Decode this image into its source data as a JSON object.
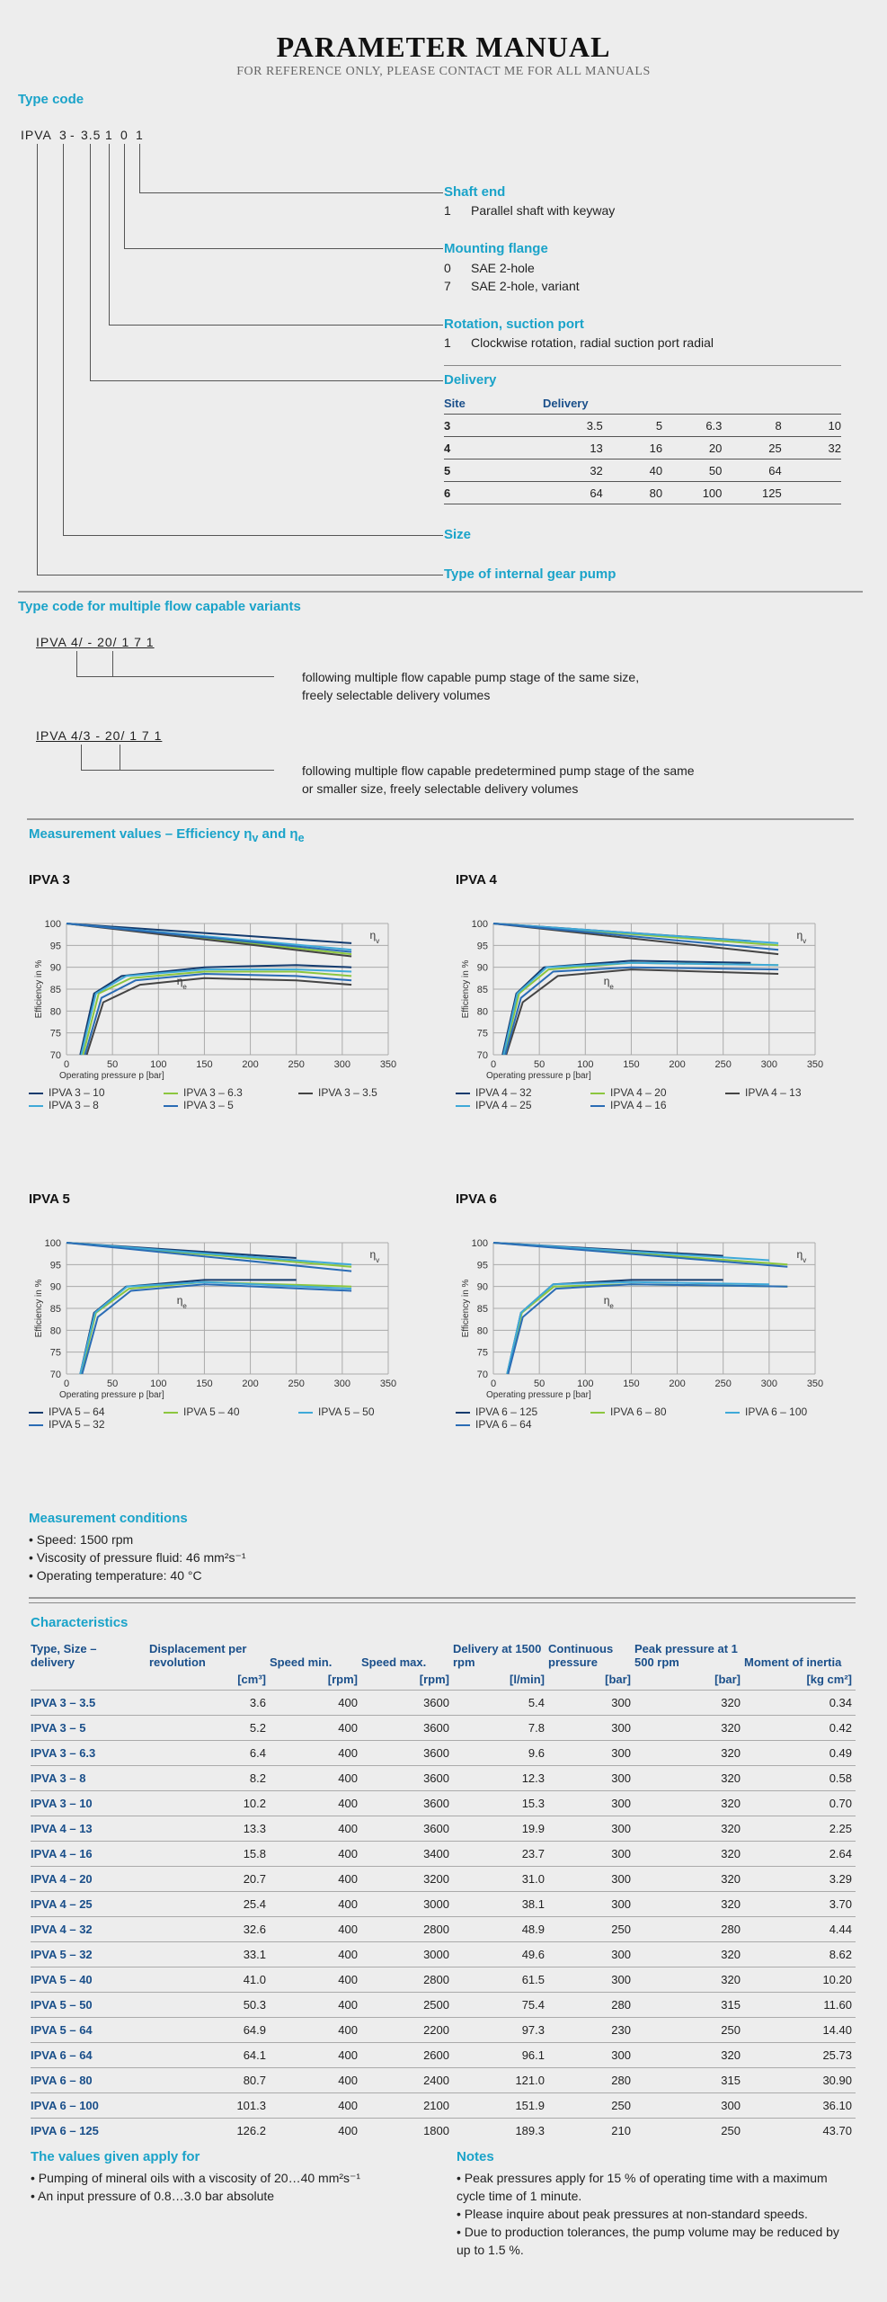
{
  "header": {
    "title": "PARAMETER MANUAL",
    "subtitle": "FOR REFERENCE ONLY, PLEASE CONTACT ME FOR ALL MANUALS"
  },
  "type_code": {
    "heading": "Type code",
    "code": [
      "IPVA",
      "3",
      "-",
      "3.5",
      "1",
      "0",
      "1"
    ],
    "shaft_end": {
      "title": "Shaft end",
      "items": [
        [
          "1",
          "Parallel shaft with keyway"
        ]
      ]
    },
    "mounting_flange": {
      "title": "Mounting flange",
      "items": [
        [
          "0",
          "SAE 2-hole"
        ],
        [
          "7",
          "SAE 2-hole, variant"
        ]
      ]
    },
    "rotation": {
      "title": "Rotation, suction port",
      "items": [
        [
          "1",
          "Clockwise rotation, radial suction port radial"
        ]
      ]
    },
    "delivery": {
      "title": "Delivery",
      "col_site": "Site",
      "col_delivery": "Delivery",
      "rows": [
        [
          "3",
          "3.5",
          "5",
          "6.3",
          "8",
          "10"
        ],
        [
          "4",
          "13",
          "16",
          "20",
          "25",
          "32"
        ],
        [
          "5",
          "32",
          "40",
          "50",
          "64",
          ""
        ],
        [
          "6",
          "64",
          "80",
          "100",
          "125",
          ""
        ]
      ]
    },
    "size": "Size",
    "type_pump": "Type of internal gear pump"
  },
  "multi": {
    "heading": "Type code for multiple flow capable variants",
    "code1": "IPVA 4/ - 20/ 1 7 1",
    "desc1a": "following multiple flow capable pump stage of the same size,",
    "desc1b": "freely selectable delivery volumes",
    "code2": "IPVA 4/3 - 20/ 1 7 1",
    "desc2a": "following multiple flow capable predetermined pump stage of the same",
    "desc2b": "or smaller size, freely selectable delivery volumes"
  },
  "measure": {
    "heading": "Measurement values – Efficiency η",
    "sub_v": "v",
    "and": " and η",
    "sub_e": "e"
  },
  "colors": {
    "c1": "#143b6e",
    "c2": "#3fa9d8",
    "c3": "#8cc63f",
    "c4": "#444444",
    "c5": "#2a6cb5",
    "accent": "#1aa3c9"
  },
  "chart_data": [
    {
      "type": "line",
      "title": "IPVA 3",
      "xlabel": "Operating pressure p [bar]",
      "ylabel": "Efficiency in %",
      "xlim": [
        0,
        350
      ],
      "ylim": [
        70,
        100
      ],
      "xticks": [
        "0",
        "50",
        "100",
        "150",
        "200",
        "250",
        "300",
        "350"
      ],
      "yticks": [
        "70",
        "75",
        "80",
        "85",
        "90",
        "95",
        "100"
      ],
      "label_v": "η",
      "label_e": "η",
      "series": [
        {
          "name": "IPVA 3 – 10",
          "color": "#143b6e",
          "eta_v": [
            [
              0,
              100
            ],
            [
              310,
              95.5
            ]
          ],
          "eta_e": [
            [
              15,
              70
            ],
            [
              30,
              84
            ],
            [
              60,
              88
            ],
            [
              150,
              90
            ],
            [
              250,
              90.5
            ],
            [
              310,
              90
            ]
          ]
        },
        {
          "name": "IPVA 3 – 6.3",
          "color": "#8cc63f",
          "eta_v": [
            [
              0,
              100
            ],
            [
              310,
              93
            ]
          ],
          "eta_e": [
            [
              18,
              70
            ],
            [
              35,
              84
            ],
            [
              70,
              87.5
            ],
            [
              150,
              89
            ],
            [
              250,
              89
            ],
            [
              310,
              88
            ]
          ]
        },
        {
          "name": "IPVA 3 – 3.5",
          "color": "#444444",
          "eta_v": [
            [
              0,
              100
            ],
            [
              310,
              92.5
            ]
          ],
          "eta_e": [
            [
              22,
              70
            ],
            [
              40,
              82
            ],
            [
              80,
              86
            ],
            [
              150,
              87.5
            ],
            [
              250,
              87
            ],
            [
              310,
              86
            ]
          ]
        },
        {
          "name": "IPVA 3 – 8",
          "color": "#3fa9d8",
          "eta_v": [
            [
              0,
              100
            ],
            [
              310,
              94
            ]
          ],
          "eta_e": [
            [
              16,
              70
            ],
            [
              32,
              84
            ],
            [
              65,
              88
            ],
            [
              150,
              89.5
            ],
            [
              250,
              89.5
            ],
            [
              310,
              89
            ]
          ]
        },
        {
          "name": "IPVA 3 – 5",
          "color": "#2a6cb5",
          "eta_v": [
            [
              0,
              100
            ],
            [
              310,
              93.5
            ]
          ],
          "eta_e": [
            [
              20,
              70
            ],
            [
              38,
              83
            ],
            [
              75,
              87
            ],
            [
              150,
              88.5
            ],
            [
              250,
              88
            ],
            [
              310,
              87
            ]
          ]
        }
      ]
    },
    {
      "type": "line",
      "title": "IPVA 4",
      "xlabel": "Operating pressure p [bar]",
      "ylabel": "Efficiency in %",
      "xlim": [
        0,
        350
      ],
      "ylim": [
        70,
        100
      ],
      "xticks": [
        "0",
        "50",
        "100",
        "150",
        "200",
        "250",
        "300",
        "350"
      ],
      "yticks": [
        "70",
        "75",
        "80",
        "85",
        "90",
        "95",
        "100"
      ],
      "label_v": "η",
      "label_e": "η",
      "series": [
        {
          "name": "IPVA 4 – 32",
          "color": "#143b6e",
          "eta_v": [
            [
              0,
              100
            ],
            [
              280,
              96
            ]
          ],
          "eta_e": [
            [
              10,
              70
            ],
            [
              25,
              84
            ],
            [
              55,
              90
            ],
            [
              150,
              91.5
            ],
            [
              280,
              91
            ]
          ]
        },
        {
          "name": "IPVA 4 – 20",
          "color": "#8cc63f",
          "eta_v": [
            [
              0,
              100
            ],
            [
              310,
              95
            ]
          ],
          "eta_e": [
            [
              12,
              70
            ],
            [
              28,
              84
            ],
            [
              60,
              89.5
            ],
            [
              150,
              91
            ],
            [
              310,
              90.5
            ]
          ]
        },
        {
          "name": "IPVA 4 – 13",
          "color": "#444444",
          "eta_v": [
            [
              0,
              100
            ],
            [
              310,
              93
            ]
          ],
          "eta_e": [
            [
              14,
              70
            ],
            [
              32,
              82
            ],
            [
              70,
              88
            ],
            [
              150,
              89.5
            ],
            [
              310,
              88.5
            ]
          ]
        },
        {
          "name": "IPVA 4 – 25",
          "color": "#3fa9d8",
          "eta_v": [
            [
              0,
              100
            ],
            [
              310,
              95.5
            ]
          ],
          "eta_e": [
            [
              11,
              70
            ],
            [
              26,
              84
            ],
            [
              58,
              90
            ],
            [
              150,
              91
            ],
            [
              310,
              90.5
            ]
          ]
        },
        {
          "name": "IPVA 4 – 16",
          "color": "#2a6cb5",
          "eta_v": [
            [
              0,
              100
            ],
            [
              310,
              94
            ]
          ],
          "eta_e": [
            [
              13,
              70
            ],
            [
              30,
              83
            ],
            [
              65,
              89
            ],
            [
              150,
              90
            ],
            [
              310,
              89.5
            ]
          ]
        }
      ]
    },
    {
      "type": "line",
      "title": "IPVA 5",
      "xlabel": "Operating pressure p [bar]",
      "ylabel": "Efficiency in %",
      "xlim": [
        0,
        350
      ],
      "ylim": [
        70,
        100
      ],
      "xticks": [
        "0",
        "50",
        "100",
        "150",
        "200",
        "250",
        "300",
        "350"
      ],
      "yticks": [
        "70",
        "75",
        "80",
        "85",
        "90",
        "95",
        "100"
      ],
      "label_v": "η",
      "label_e": "η",
      "series": [
        {
          "name": "IPVA 5 – 64",
          "color": "#143b6e",
          "eta_v": [
            [
              0,
              100
            ],
            [
              250,
              96.5
            ]
          ],
          "eta_e": [
            [
              15,
              70
            ],
            [
              30,
              84
            ],
            [
              65,
              90
            ],
            [
              150,
              91.5
            ],
            [
              250,
              91.5
            ]
          ]
        },
        {
          "name": "IPVA 5 – 40",
          "color": "#8cc63f",
          "eta_v": [
            [
              0,
              100
            ],
            [
              310,
              94.5
            ]
          ],
          "eta_e": [
            [
              16,
              70
            ],
            [
              32,
              84
            ],
            [
              68,
              89.5
            ],
            [
              150,
              91
            ],
            [
              310,
              90
            ]
          ]
        },
        {
          "name": "IPVA 5 – 50",
          "color": "#3fa9d8",
          "eta_v": [
            [
              0,
              100
            ],
            [
              310,
              95
            ]
          ],
          "eta_e": [
            [
              15,
              70
            ],
            [
              31,
              84
            ],
            [
              66,
              90
            ],
            [
              150,
              91
            ],
            [
              310,
              89.5
            ]
          ]
        },
        {
          "name": "IPVA 5 – 32",
          "color": "#2a6cb5",
          "eta_v": [
            [
              0,
              100
            ],
            [
              310,
              93.5
            ]
          ],
          "eta_e": [
            [
              17,
              70
            ],
            [
              34,
              83
            ],
            [
              70,
              89
            ],
            [
              150,
              90.5
            ],
            [
              310,
              89
            ]
          ]
        }
      ]
    },
    {
      "type": "line",
      "title": "IPVA 6",
      "xlabel": "Operating pressure p [bar]",
      "ylabel": "Efficiency in %",
      "xlim": [
        0,
        350
      ],
      "ylim": [
        70,
        100
      ],
      "xticks": [
        "0",
        "50",
        "100",
        "150",
        "200",
        "250",
        "300",
        "350"
      ],
      "yticks": [
        "70",
        "75",
        "80",
        "85",
        "90",
        "95",
        "100"
      ],
      "label_v": "η",
      "label_e": "η",
      "series": [
        {
          "name": "IPVA 6 – 125",
          "color": "#143b6e",
          "eta_v": [
            [
              0,
              100
            ],
            [
              250,
              97
            ]
          ],
          "eta_e": [
            [
              15,
              70
            ],
            [
              30,
              84
            ],
            [
              65,
              90.5
            ],
            [
              150,
              91.5
            ],
            [
              250,
              91.5
            ]
          ]
        },
        {
          "name": "IPVA 6 – 80",
          "color": "#8cc63f",
          "eta_v": [
            [
              0,
              100
            ],
            [
              320,
              95
            ]
          ],
          "eta_e": [
            [
              15,
              70
            ],
            [
              31,
              84
            ],
            [
              66,
              90
            ],
            [
              150,
              90.5
            ],
            [
              320,
              90
            ]
          ]
        },
        {
          "name": "IPVA 6 – 100",
          "color": "#3fa9d8",
          "eta_v": [
            [
              0,
              100
            ],
            [
              300,
              96
            ]
          ],
          "eta_e": [
            [
              15,
              70
            ],
            [
              30,
              84
            ],
            [
              65,
              90.5
            ],
            [
              150,
              91
            ],
            [
              300,
              90.5
            ]
          ]
        },
        {
          "name": "IPVA 6 – 64",
          "color": "#2a6cb5",
          "eta_v": [
            [
              0,
              100
            ],
            [
              320,
              94.5
            ]
          ],
          "eta_e": [
            [
              16,
              70
            ],
            [
              32,
              83
            ],
            [
              68,
              89.5
            ],
            [
              150,
              90.5
            ],
            [
              320,
              90
            ]
          ]
        }
      ]
    }
  ],
  "conditions": {
    "heading": "Measurement conditions",
    "items": [
      "Speed: 1500 rpm",
      "Viscosity of pressure fluid: 46 mm²s⁻¹",
      "Operating temperature: 40 °C"
    ]
  },
  "characteristics": {
    "heading": "Characteristics",
    "headers": [
      "Type, Size – delivery",
      "Displacement per revolution",
      "Speed min.",
      "Speed max.",
      "Delivery at 1500 rpm",
      "Continuous pressure",
      "Peak pressure at 1 500 rpm",
      "Moment of inertia"
    ],
    "units": [
      "",
      "[cm³]",
      "[rpm]",
      "[rpm]",
      "[l/min]",
      "[bar]",
      "[bar]",
      "[kg cm²]"
    ],
    "rows": [
      [
        "IPVA 3 – 3.5",
        "3.6",
        "400",
        "3600",
        "5.4",
        "300",
        "320",
        "0.34"
      ],
      [
        "IPVA 3 – 5",
        "5.2",
        "400",
        "3600",
        "7.8",
        "300",
        "320",
        "0.42"
      ],
      [
        "IPVA 3 – 6.3",
        "6.4",
        "400",
        "3600",
        "9.6",
        "300",
        "320",
        "0.49"
      ],
      [
        "IPVA 3 – 8",
        "8.2",
        "400",
        "3600",
        "12.3",
        "300",
        "320",
        "0.58"
      ],
      [
        "IPVA 3 – 10",
        "10.2",
        "400",
        "3600",
        "15.3",
        "300",
        "320",
        "0.70"
      ],
      [
        "IPVA 4 – 13",
        "13.3",
        "400",
        "3600",
        "19.9",
        "300",
        "320",
        "2.25"
      ],
      [
        "IPVA 4 – 16",
        "15.8",
        "400",
        "3400",
        "23.7",
        "300",
        "320",
        "2.64"
      ],
      [
        "IPVA 4 – 20",
        "20.7",
        "400",
        "3200",
        "31.0",
        "300",
        "320",
        "3.29"
      ],
      [
        "IPVA 4 – 25",
        "25.4",
        "400",
        "3000",
        "38.1",
        "300",
        "320",
        "3.70"
      ],
      [
        "IPVA 4 – 32",
        "32.6",
        "400",
        "2800",
        "48.9",
        "250",
        "280",
        "4.44"
      ],
      [
        "IPVA 5 – 32",
        "33.1",
        "400",
        "3000",
        "49.6",
        "300",
        "320",
        "8.62"
      ],
      [
        "IPVA 5 – 40",
        "41.0",
        "400",
        "2800",
        "61.5",
        "300",
        "320",
        "10.20"
      ],
      [
        "IPVA 5 – 50",
        "50.3",
        "400",
        "2500",
        "75.4",
        "280",
        "315",
        "11.60"
      ],
      [
        "IPVA 5 – 64",
        "64.9",
        "400",
        "2200",
        "97.3",
        "230",
        "250",
        "14.40"
      ],
      [
        "IPVA 6 – 64",
        "64.1",
        "400",
        "2600",
        "96.1",
        "300",
        "320",
        "25.73"
      ],
      [
        "IPVA 6 – 80",
        "80.7",
        "400",
        "2400",
        "121.0",
        "280",
        "315",
        "30.90"
      ],
      [
        "IPVA 6 – 100",
        "101.3",
        "400",
        "2100",
        "151.9",
        "250",
        "300",
        "36.10"
      ],
      [
        "IPVA 6 – 125",
        "126.2",
        "400",
        "1800",
        "189.3",
        "210",
        "250",
        "43.70"
      ]
    ]
  },
  "values_apply": {
    "heading": "The values given apply for",
    "items": [
      "Pumping of mineral oils with a viscosity of 20…40 mm²s⁻¹",
      "An input pressure of 0.8…3.0 bar absolute"
    ]
  },
  "notes": {
    "heading": "Notes",
    "items": [
      "Peak pressures apply for 15 % of operating time with a maximum cycle time of 1 minute.",
      "Please inquire about peak pressures at non-standard speeds.",
      "Due to production tolerances, the pump volume may be reduced by up to 1.5 %."
    ]
  }
}
